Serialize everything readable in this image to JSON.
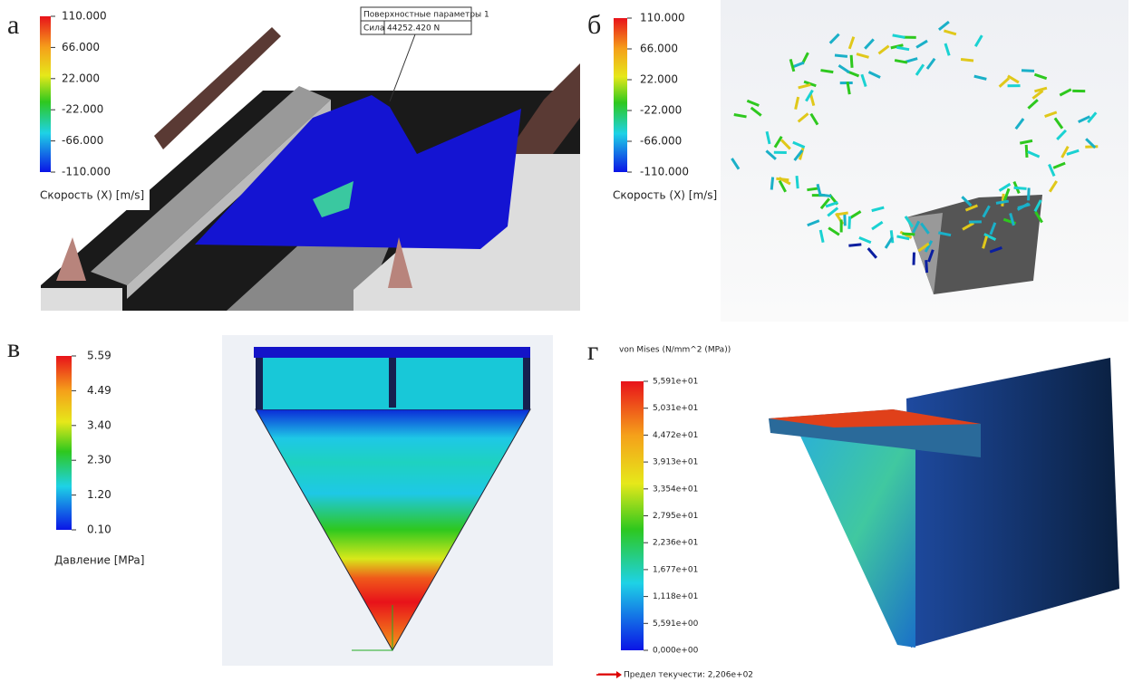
{
  "panels": [
    {
      "label": "а",
      "legend": {
        "title": "Скорость (X) [m/s]",
        "ticks": [
          "110.000",
          "66.000",
          "22.000",
          "-22.000",
          "-66.000",
          "-110.000"
        ]
      },
      "callout": {
        "title": "Поверхностные параметры 1",
        "name": "Сила",
        "value": "44252.420 N"
      }
    },
    {
      "label": "б",
      "legend": {
        "title": "Скорость (X) [m/s]",
        "ticks": [
          "110.000",
          "66.000",
          "22.000",
          "-22.000",
          "-66.000",
          "-110.000"
        ]
      }
    },
    {
      "label": "в",
      "legend": {
        "title": "Давление [MPa]",
        "ticks": [
          "5.59",
          "4.49",
          "3.40",
          "2.30",
          "1.20",
          "0.10"
        ]
      }
    },
    {
      "label": "г",
      "legend": {
        "title": "von Mises (N/mm^2 (MPa))",
        "ticks": [
          "5,591e+01",
          "5,031e+01",
          "4,472e+01",
          "3,913e+01",
          "3,354e+01",
          "2,795e+01",
          "2,236e+01",
          "1,677e+01",
          "1,118e+01",
          "5,591e+00",
          "0,000e+00"
        ]
      },
      "yield": "Предел текучести: 2,206e+02"
    }
  ]
}
